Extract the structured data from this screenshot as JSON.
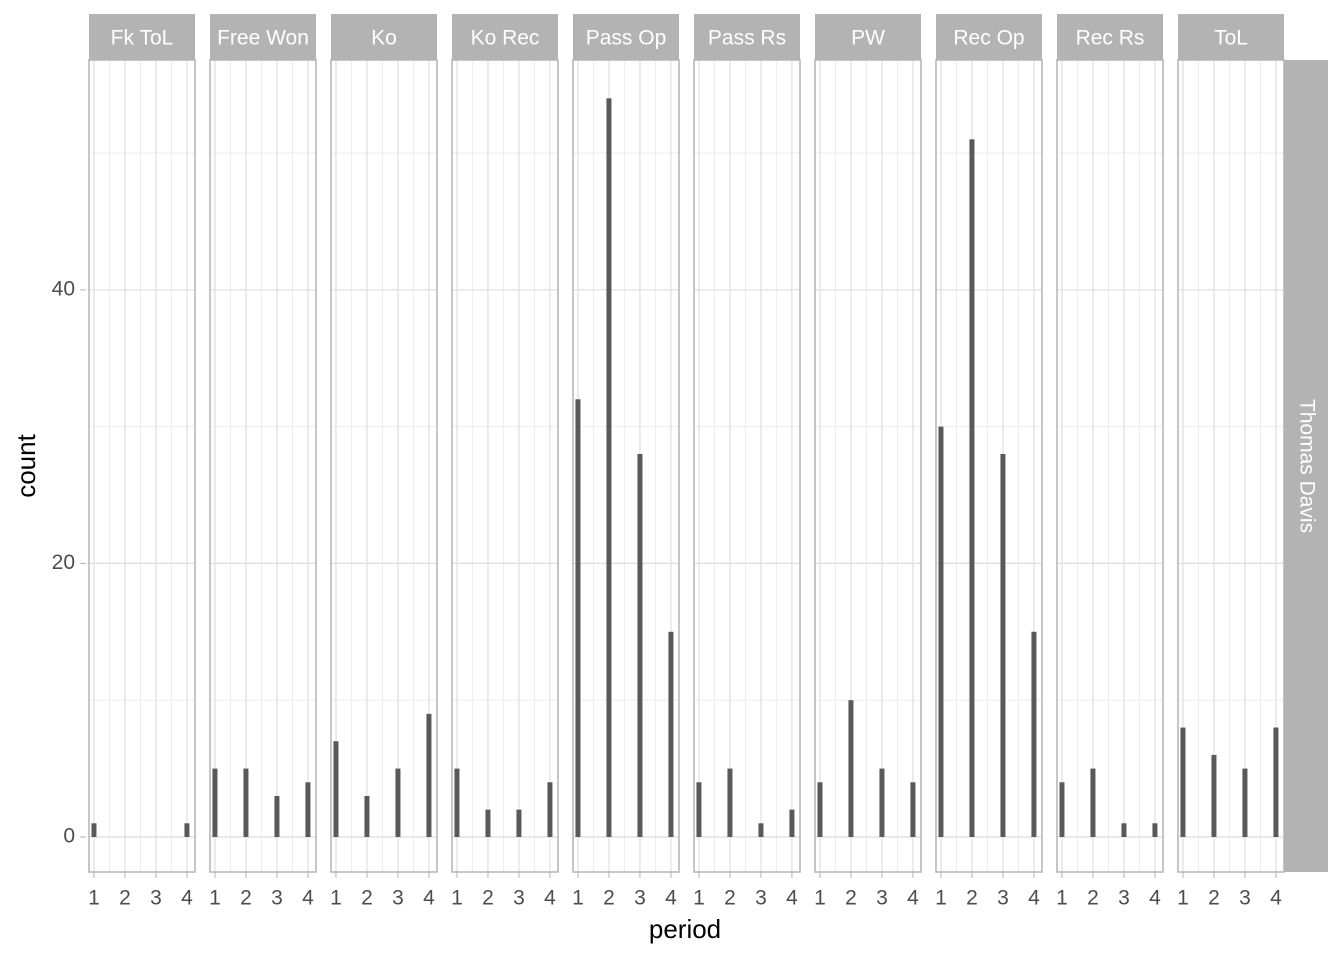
{
  "chart_data": {
    "type": "bar",
    "x_label": "period",
    "y_label": "count",
    "row_strip": "Thomas Davis",
    "x": [
      1,
      2,
      3,
      4
    ],
    "xlim": [
      0.84,
      4.26
    ],
    "xticks": [
      1,
      2,
      3,
      4
    ],
    "minor_xticks": [
      1.5,
      2.5,
      3.5
    ],
    "ylim": [
      -2.56,
      56.8
    ],
    "yticks": [
      0,
      20,
      40
    ],
    "minor_yticks": [
      10,
      30,
      50
    ],
    "grid": true,
    "color": "#595959",
    "facets": [
      {
        "name": "Fk ToL",
        "values": [
          1,
          null,
          null,
          1
        ]
      },
      {
        "name": "Free Won",
        "values": [
          5,
          5,
          3,
          4
        ]
      },
      {
        "name": "Ko",
        "values": [
          7,
          3,
          5,
          9
        ]
      },
      {
        "name": "Ko Rec",
        "values": [
          5,
          2,
          2,
          4
        ]
      },
      {
        "name": "Pass Op",
        "values": [
          32,
          54,
          28,
          15
        ]
      },
      {
        "name": "Pass Rs",
        "values": [
          4,
          5,
          1,
          2
        ]
      },
      {
        "name": "PW",
        "values": [
          4,
          10,
          5,
          4
        ]
      },
      {
        "name": "Rec Op",
        "values": [
          30,
          51,
          28,
          15
        ]
      },
      {
        "name": "Rec Rs",
        "values": [
          4,
          5,
          1,
          1
        ]
      },
      {
        "name": "ToL",
        "values": [
          8,
          6,
          5,
          8
        ]
      }
    ]
  }
}
